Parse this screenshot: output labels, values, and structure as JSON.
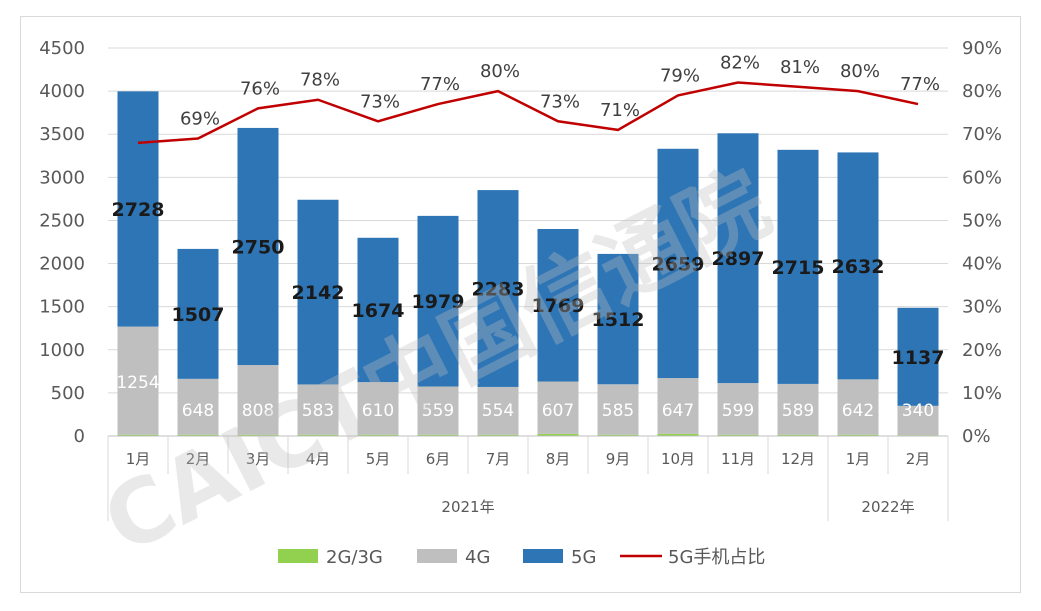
{
  "chart_data": {
    "type": "bar",
    "stacked": true,
    "categories": [
      "1月",
      "2月",
      "3月",
      "4月",
      "5月",
      "6月",
      "7月",
      "8月",
      "9月",
      "10月",
      "11月",
      "12月",
      "1月",
      "2月"
    ],
    "groups": [
      {
        "label": "2021年",
        "count": 12
      },
      {
        "label": "2022年",
        "count": 2
      }
    ],
    "series": [
      {
        "name": "2G/3G",
        "color": "#92d050",
        "values": [
          15,
          15,
          15,
          15,
          15,
          15,
          15,
          25,
          15,
          25,
          15,
          15,
          15,
          10
        ]
      },
      {
        "name": "4G",
        "color": "#bfbfbf",
        "values": [
          1254,
          648,
          808,
          583,
          610,
          559,
          554,
          607,
          585,
          647,
          599,
          589,
          642,
          340
        ]
      },
      {
        "name": "5G",
        "color": "#2e75b6",
        "values": [
          2728,
          1507,
          2750,
          2142,
          1674,
          1979,
          2283,
          1769,
          1512,
          2659,
          2897,
          2715,
          2632,
          1137
        ]
      }
    ],
    "line_series": {
      "name": "5G手机占比",
      "color": "#c00000",
      "axis": "right",
      "values": [
        68,
        69,
        76,
        78,
        73,
        77,
        80,
        73,
        71,
        79,
        82,
        81,
        80,
        77
      ],
      "labels": [
        "",
        "69%",
        "76%",
        "78%",
        "73%",
        "77%",
        "80%",
        "73%",
        "71%",
        "79%",
        "82%",
        "81%",
        "80%",
        "77%"
      ]
    },
    "y_left": {
      "min": 0,
      "max": 4500,
      "step": 500
    },
    "y_right": {
      "min": 0,
      "max": 90,
      "step": 10,
      "suffix": "%"
    },
    "legend_position": "bottom",
    "grid": true
  },
  "watermark": "CAICT中国信通院"
}
